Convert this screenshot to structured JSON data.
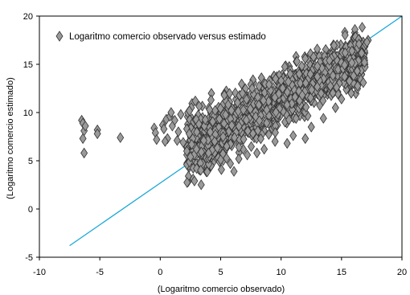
{
  "chart_data": {
    "type": "scatter",
    "xlabel": "(Logaritmo comercio observado)",
    "ylabel": "(Logaritmo comercio estimado)",
    "xlim": [
      -10,
      20
    ],
    "ylim": [
      -5,
      20
    ],
    "xticks": [
      "-10",
      "-5",
      "0",
      "5",
      "10",
      "15",
      "20"
    ],
    "yticks": [
      "-5",
      "0",
      "5",
      "10",
      "15",
      "20"
    ],
    "grid": false,
    "legend_position": "top-left",
    "series": [
      {
        "name": "Logaritmo comercio observado versus estimado",
        "marker": "diamond",
        "color": "#9a9a9a",
        "points": [
          [
            -6.5,
            9.2
          ],
          [
            -6.4,
            8.9
          ],
          [
            -6.3,
            8.1
          ],
          [
            -6.2,
            8.6
          ],
          [
            -6.4,
            7.3
          ],
          [
            -6.3,
            5.8
          ],
          [
            -5.2,
            8.2
          ],
          [
            -5.2,
            7.8
          ],
          [
            -3.3,
            7.4
          ],
          [
            -0.5,
            8.4
          ],
          [
            -0.4,
            7.9
          ],
          [
            -0.3,
            7.2
          ],
          [
            0.2,
            8.7
          ],
          [
            0.3,
            8.3
          ],
          [
            0.5,
            9.3
          ],
          [
            0.6,
            7.3
          ],
          [
            0.4,
            7.0
          ],
          [
            0.8,
            9.6
          ],
          [
            0.9,
            10.0
          ],
          [
            1.0,
            8.6
          ],
          [
            1.2,
            9.2
          ],
          [
            1.4,
            7.1
          ],
          [
            1.5,
            8.0
          ],
          [
            1.7,
            9.8
          ],
          [
            1.9,
            6.9
          ],
          [
            2.2,
            8.3
          ],
          [
            2.4,
            7.8
          ],
          [
            2.6,
            6.7
          ],
          [
            2.8,
            5.6
          ],
          [
            2.5,
            5.4
          ],
          [
            3.0,
            6.2
          ],
          [
            3.2,
            8.8
          ],
          [
            3.4,
            5.9
          ],
          [
            3.6,
            7.1
          ],
          [
            4.0,
            5.8
          ],
          [
            4.2,
            11.3
          ],
          [
            4.5,
            7.0
          ],
          [
            4.8,
            5.3
          ],
          [
            4.9,
            4.9
          ],
          [
            5.0,
            5.1
          ],
          [
            5.3,
            11.8
          ],
          [
            5.5,
            6.5
          ],
          [
            5.8,
            4.7
          ],
          [
            6.1,
            3.9
          ],
          [
            6.5,
            5.2
          ],
          [
            6.8,
            12.0
          ],
          [
            7.2,
            5.6
          ],
          [
            7.6,
            12.5
          ],
          [
            8.0,
            5.8
          ],
          [
            8.6,
            6.2
          ],
          [
            9.0,
            12.9
          ],
          [
            9.5,
            7.0
          ],
          [
            10.0,
            13.3
          ],
          [
            10.5,
            6.8
          ],
          [
            11.0,
            7.6
          ],
          [
            11.5,
            14.0
          ],
          [
            12.0,
            7.3
          ],
          [
            12.5,
            8.5
          ],
          [
            13.0,
            14.8
          ],
          [
            13.5,
            9.4
          ],
          [
            14.0,
            15.4
          ],
          [
            14.5,
            10.5
          ],
          [
            15.0,
            11.4
          ],
          [
            15.3,
            16.2
          ],
          [
            15.8,
            12.0
          ],
          [
            16.0,
            13.8
          ],
          [
            16.3,
            14.3
          ],
          [
            16.6,
            13.4
          ],
          [
            16.8,
            13.1
          ],
          [
            16.9,
            16.9
          ],
          [
            17.0,
            17.1
          ],
          [
            17.2,
            17.5
          ],
          [
            17.1,
            17.3
          ],
          [
            16.9,
            15.2
          ]
        ]
      }
    ],
    "reference_line": {
      "color": "#1aa7d8",
      "from": [
        -7.5,
        -3.8
      ],
      "to": [
        20,
        20
      ]
    }
  }
}
